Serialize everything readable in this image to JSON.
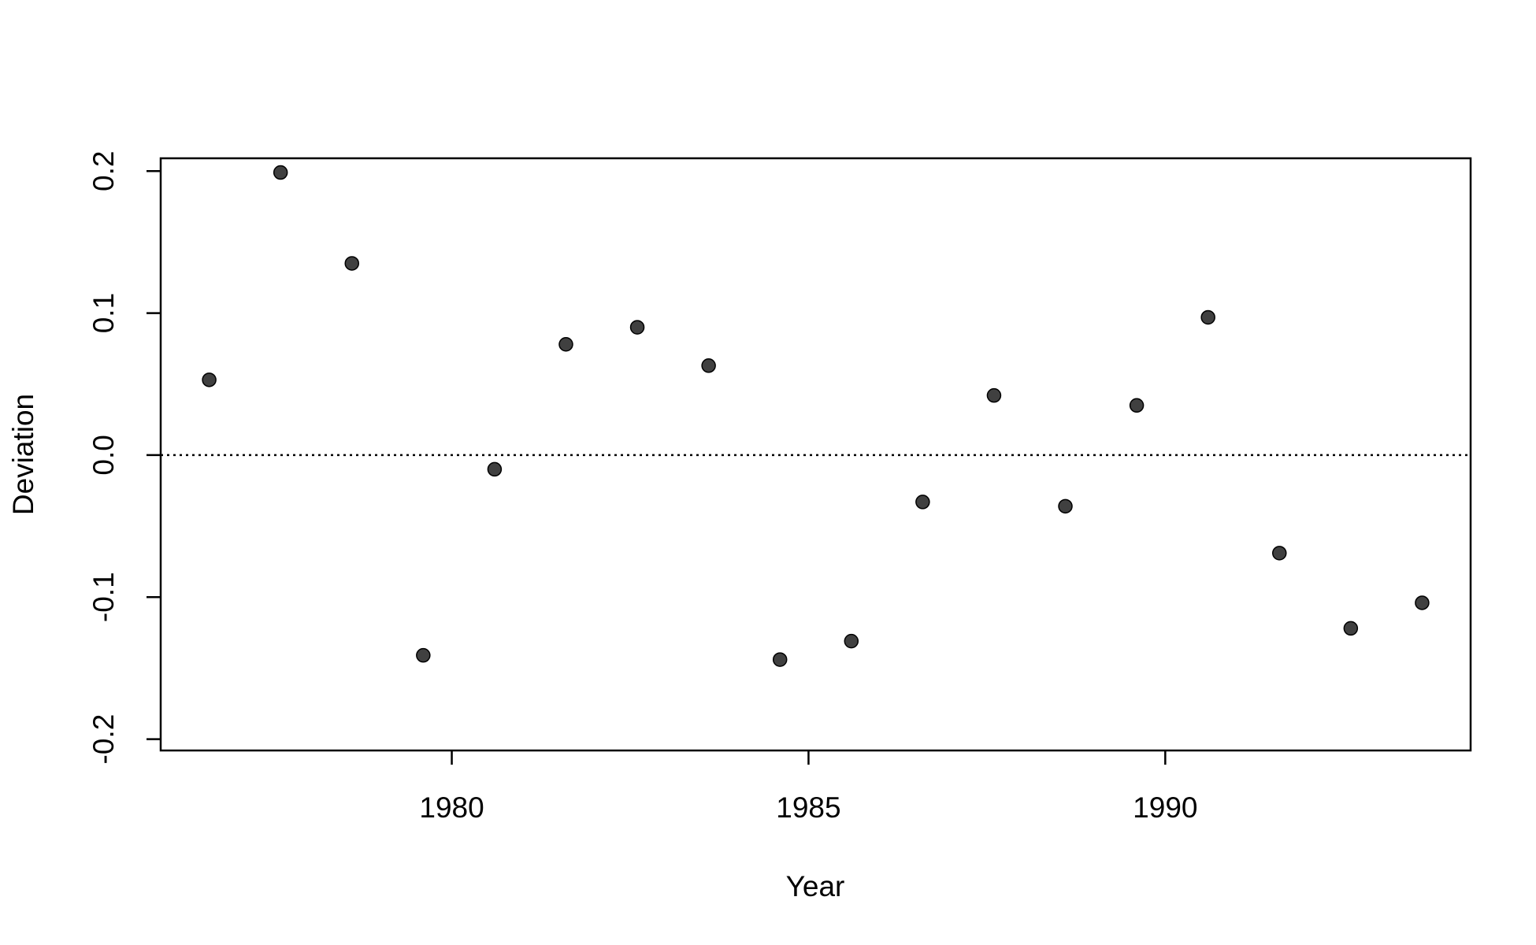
{
  "chart_data": {
    "type": "scatter",
    "x_label": "Year",
    "y_label": "Deviation",
    "x": [
      1976.6,
      1977.6,
      1978.6,
      1979.6,
      1980.6,
      1981.6,
      1982.6,
      1983.6,
      1984.6,
      1985.6,
      1986.6,
      1987.6,
      1988.6,
      1989.6,
      1990.6,
      1991.6,
      1992.6,
      1993.6
    ],
    "values": [
      0.053,
      0.199,
      0.135,
      -0.141,
      -0.01,
      0.078,
      0.09,
      0.063,
      -0.144,
      -0.131,
      -0.033,
      0.042,
      -0.036,
      0.035,
      0.097,
      -0.069,
      -0.122,
      -0.104
    ],
    "color": "#404040",
    "xlim": [
      1975.92,
      1994.28
    ],
    "ylim": [
      -0.208,
      0.209
    ],
    "xticks": [
      1980,
      1985,
      1990
    ],
    "yticks": [
      {
        "value": -0.2,
        "label": "-0.2"
      },
      {
        "value": -0.1,
        "label": "-0.1"
      },
      {
        "value": 0,
        "label": "0.0"
      },
      {
        "value": 0.1,
        "label": "0.1"
      },
      {
        "value": 0.2,
        "label": "0.2"
      }
    ],
    "hline": 0
  }
}
